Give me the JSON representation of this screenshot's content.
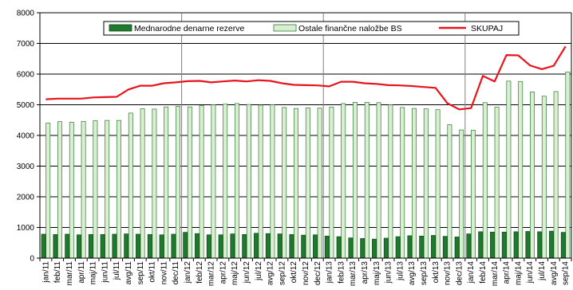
{
  "chart_data": {
    "type": "bar",
    "ylim": [
      0,
      8000
    ],
    "yticks": [
      0,
      1000,
      2000,
      3000,
      4000,
      5000,
      6000,
      7000,
      8000
    ],
    "legend_position": "top",
    "grid": "horizontal",
    "categories": [
      "jan/11",
      "feb/11",
      "mar/11",
      "apr/11",
      "maj/11",
      "jun/11",
      "jul/11",
      "avg/11",
      "sep/11",
      "okt/11",
      "nov/11",
      "dec/11",
      "jan/12",
      "feb/12",
      "mar/12",
      "apr/12",
      "maj/12",
      "jun/12",
      "jul/12",
      "avg/12",
      "sep/12",
      "okt/12",
      "nov/12",
      "dec/12",
      "jan/13",
      "feb/13",
      "mar/13",
      "apr/13",
      "maj/13",
      "jun/13",
      "jul/13",
      "avg/13",
      "sep/13",
      "okt/13",
      "nov/13",
      "dec/13",
      "jan/14",
      "feb/14",
      "mar/14",
      "apr/14",
      "maj/14",
      "jun/14",
      "jul/14",
      "avg/14",
      "sep/14"
    ],
    "tick_labels": [
      "jan/11",
      "",
      "mar/11",
      "",
      "maj/11",
      "",
      "jul/11",
      "",
      "sep/11",
      "",
      "nov/11",
      "",
      "jan/12",
      "",
      "mar/12",
      "",
      "maj/12",
      "",
      "jul/12",
      "",
      "sep/12",
      "",
      "nov/12",
      "",
      "jan/13",
      "",
      "mar/13",
      "",
      "maj/13",
      "",
      "jul/13",
      "",
      "sep/13",
      "",
      "nov/13",
      "",
      "jan/14",
      "",
      "mar/14",
      "",
      "maj/14",
      "",
      "jul/14",
      "",
      "sep/14"
    ],
    "tick_labels_even": [
      "",
      "feb/11",
      "",
      "apr/11",
      "",
      "jun/11",
      "",
      "avg/11",
      "",
      "okt/11",
      "",
      "dec/11",
      "",
      "feb/12",
      "",
      "apr/12",
      "",
      "jun/12",
      "",
      "avg/12",
      "",
      "okt/12",
      "",
      "dec/12",
      "",
      "feb/13",
      "",
      "apr/13",
      "",
      "jun/13",
      "",
      "avg/13",
      "",
      "okt/13",
      "",
      "dec/13",
      "",
      "feb/14",
      "",
      "apr/14",
      "",
      "jun/14",
      "",
      "avg/14",
      ""
    ],
    "series": [
      {
        "name": "Mednarodne denarne rezerve",
        "type": "bar",
        "color": "#1f7a2e",
        "values": [
          780,
          770,
          780,
          760,
          770,
          770,
          780,
          790,
          780,
          770,
          760,
          780,
          840,
          800,
          760,
          760,
          790,
          770,
          810,
          800,
          790,
          770,
          750,
          760,
          720,
          700,
          660,
          640,
          620,
          650,
          700,
          730,
          720,
          740,
          710,
          690,
          790,
          860,
          850,
          850,
          860,
          870,
          860,
          880,
          840
        ]
      },
      {
        "name": "Ostale finančne naložbe BS",
        "type": "bar",
        "color": "#d9efcf",
        "values": [
          4400,
          4450,
          4430,
          4460,
          4480,
          4490,
          4490,
          4730,
          4870,
          4860,
          4930,
          4950,
          4930,
          4980,
          5000,
          5020,
          5040,
          5010,
          4990,
          5000,
          4910,
          4880,
          4900,
          4890,
          4920,
          5040,
          5080,
          5080,
          5070,
          5000,
          4910,
          4880,
          4870,
          4840,
          4350,
          4180,
          4170,
          5070,
          4920,
          5770,
          5760,
          5420,
          5280,
          5430,
          6070
        ]
      },
      {
        "name": "SKUPAJ",
        "type": "line",
        "color": "#e8141b",
        "values": [
          5180,
          5200,
          5200,
          5200,
          5240,
          5250,
          5260,
          5500,
          5620,
          5620,
          5700,
          5730,
          5770,
          5780,
          5730,
          5760,
          5790,
          5760,
          5800,
          5780,
          5700,
          5650,
          5640,
          5630,
          5600,
          5750,
          5750,
          5700,
          5680,
          5640,
          5630,
          5610,
          5580,
          5550,
          5050,
          4850,
          4890,
          5940,
          5760,
          6620,
          6610,
          6280,
          6160,
          6270,
          6900
        ]
      }
    ]
  }
}
